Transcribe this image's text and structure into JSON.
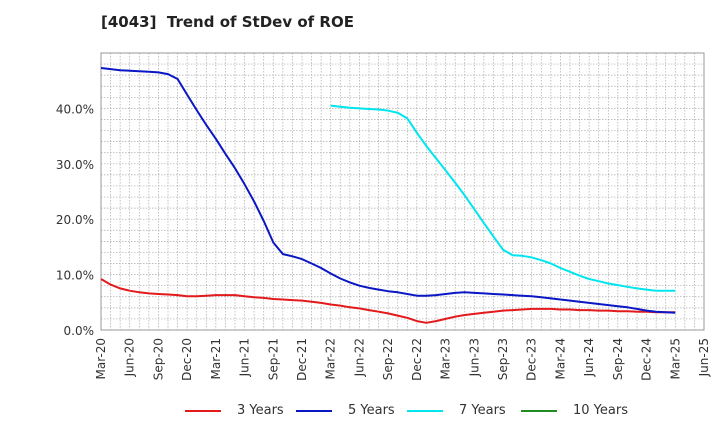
{
  "chart_data": {
    "type": "line",
    "title": "[4043]  Trend of StDev of ROE",
    "xlabel": "",
    "ylabel": "",
    "ylim": [
      0,
      50
    ],
    "yticks": [
      0,
      10,
      20,
      30,
      40
    ],
    "ytick_labels": [
      "0.0%",
      "10.0%",
      "20.0%",
      "30.0%",
      "40.0%"
    ],
    "x_categories": [
      "Mar-20",
      "Jun-20",
      "Sep-20",
      "Dec-20",
      "Mar-21",
      "Jun-21",
      "Sep-21",
      "Dec-21",
      "Mar-22",
      "Jun-22",
      "Sep-22",
      "Dec-22",
      "Mar-23",
      "Jun-23",
      "Sep-23",
      "Dec-23",
      "Mar-24",
      "Jun-24",
      "Sep-24",
      "Dec-24",
      "Mar-25",
      "Jun-25"
    ],
    "grid": true,
    "legend_position": "bottom",
    "series": [
      {
        "name": "3 Years",
        "color": "#e31a1c",
        "x": [
          "Mar-20",
          "Apr-20",
          "May-20",
          "Jun-20",
          "Jul-20",
          "Aug-20",
          "Sep-20",
          "Oct-20",
          "Nov-20",
          "Dec-20",
          "Jan-21",
          "Feb-21",
          "Mar-21",
          "Apr-21",
          "May-21",
          "Jun-21",
          "Jul-21",
          "Aug-21",
          "Sep-21",
          "Oct-21",
          "Nov-21",
          "Dec-21",
          "Jan-22",
          "Feb-22",
          "Mar-22",
          "Apr-22",
          "May-22",
          "Jun-22",
          "Jul-22",
          "Aug-22",
          "Sep-22",
          "Oct-22",
          "Nov-22",
          "Dec-22",
          "Jan-23",
          "Feb-23",
          "Mar-23",
          "Apr-23",
          "May-23",
          "Jun-23",
          "Jul-23",
          "Aug-23",
          "Sep-23",
          "Oct-23",
          "Nov-23",
          "Dec-23",
          "Jan-24",
          "Feb-24",
          "Mar-24",
          "Apr-24",
          "May-24",
          "Jun-24",
          "Jul-24",
          "Aug-24",
          "Sep-24",
          "Oct-24",
          "Nov-24",
          "Dec-24",
          "Jan-25",
          "Feb-25",
          "Mar-25"
        ],
        "values": [
          9.2,
          8.2,
          7.5,
          7.1,
          6.8,
          6.6,
          6.5,
          6.4,
          6.3,
          6.1,
          6.1,
          6.2,
          6.3,
          6.3,
          6.3,
          6.1,
          5.9,
          5.8,
          5.6,
          5.5,
          5.4,
          5.3,
          5.1,
          4.9,
          4.6,
          4.4,
          4.1,
          3.9,
          3.6,
          3.3,
          3.0,
          2.6,
          2.2,
          1.6,
          1.3,
          1.6,
          2.0,
          2.4,
          2.7,
          2.9,
          3.1,
          3.3,
          3.5,
          3.6,
          3.7,
          3.8,
          3.8,
          3.8,
          3.7,
          3.7,
          3.6,
          3.6,
          3.5,
          3.5,
          3.4,
          3.4,
          3.3,
          3.3,
          3.2,
          3.2,
          3.2
        ]
      },
      {
        "name": "5 Years",
        "color": "#0a17c4",
        "x": [
          "Mar-20",
          "Apr-20",
          "May-20",
          "Jun-20",
          "Jul-20",
          "Aug-20",
          "Sep-20",
          "Oct-20",
          "Nov-20",
          "Dec-20",
          "Jan-21",
          "Feb-21",
          "Mar-21",
          "Apr-21",
          "May-21",
          "Jun-21",
          "Jul-21",
          "Aug-21",
          "Sep-21",
          "Oct-21",
          "Nov-21",
          "Dec-21",
          "Jan-22",
          "Feb-22",
          "Mar-22",
          "Apr-22",
          "May-22",
          "Jun-22",
          "Jul-22",
          "Aug-22",
          "Sep-22",
          "Oct-22",
          "Nov-22",
          "Dec-22",
          "Jan-23",
          "Feb-23",
          "Mar-23",
          "Apr-23",
          "May-23",
          "Jun-23",
          "Jul-23",
          "Aug-23",
          "Sep-23",
          "Oct-23",
          "Nov-23",
          "Dec-23",
          "Jan-24",
          "Feb-24",
          "Mar-24",
          "Apr-24",
          "May-24",
          "Jun-24",
          "Jul-24",
          "Aug-24",
          "Sep-24",
          "Oct-24",
          "Nov-24",
          "Dec-24",
          "Jan-25",
          "Feb-25",
          "Mar-25"
        ],
        "values": [
          47.3,
          47.1,
          46.9,
          46.8,
          46.7,
          46.6,
          46.5,
          46.2,
          45.3,
          42.5,
          39.7,
          37.0,
          34.5,
          31.8,
          29.2,
          26.3,
          23.2,
          19.7,
          15.8,
          13.7,
          13.3,
          12.8,
          12.0,
          11.2,
          10.2,
          9.3,
          8.6,
          8.0,
          7.6,
          7.3,
          7.0,
          6.8,
          6.5,
          6.2,
          6.2,
          6.3,
          6.5,
          6.7,
          6.8,
          6.7,
          6.6,
          6.5,
          6.4,
          6.3,
          6.2,
          6.1,
          5.9,
          5.7,
          5.5,
          5.3,
          5.1,
          4.9,
          4.7,
          4.5,
          4.3,
          4.1,
          3.8,
          3.5,
          3.3,
          3.2,
          3.1
        ]
      },
      {
        "name": "7 Years",
        "color": "#00e5ee",
        "x": [
          "Mar-22",
          "Apr-22",
          "May-22",
          "Jun-22",
          "Jul-22",
          "Aug-22",
          "Sep-22",
          "Oct-22",
          "Nov-22",
          "Dec-22",
          "Jan-23",
          "Feb-23",
          "Mar-23",
          "Apr-23",
          "May-23",
          "Jun-23",
          "Jul-23",
          "Aug-23",
          "Sep-23",
          "Oct-23",
          "Nov-23",
          "Dec-23",
          "Jan-24",
          "Feb-24",
          "Mar-24",
          "Apr-24",
          "May-24",
          "Jun-24",
          "Jul-24",
          "Aug-24",
          "Sep-24",
          "Oct-24",
          "Nov-24",
          "Dec-24",
          "Jan-25",
          "Feb-25",
          "Mar-25"
        ],
        "values": [
          40.5,
          40.3,
          40.1,
          40.0,
          39.9,
          39.8,
          39.6,
          39.2,
          38.2,
          35.6,
          33.2,
          31.0,
          28.8,
          26.6,
          24.3,
          21.8,
          19.3,
          16.9,
          14.5,
          13.5,
          13.4,
          13.1,
          12.6,
          12.0,
          11.2,
          10.5,
          9.8,
          9.2,
          8.8,
          8.4,
          8.1,
          7.8,
          7.5,
          7.3,
          7.1,
          7.1,
          7.1
        ]
      },
      {
        "name": "10 Years",
        "color": "#228b22",
        "x": [],
        "values": []
      }
    ]
  }
}
